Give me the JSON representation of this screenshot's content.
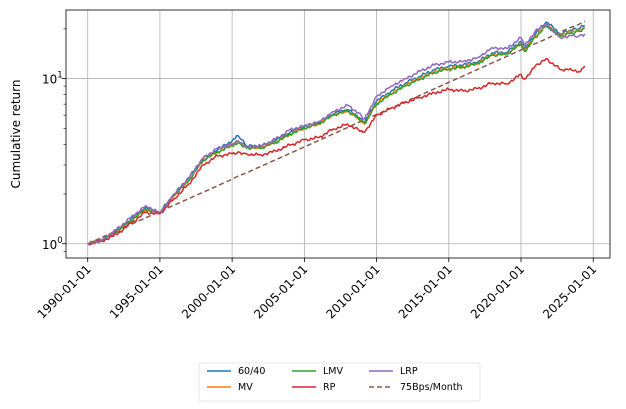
{
  "chart_data": {
    "type": "line",
    "title": "",
    "xlabel": "",
    "ylabel": "Cumulative return",
    "yscale": "log",
    "ylim": [
      0.82,
      26
    ],
    "xlim": [
      "1988-07-01",
      "2026-03-01"
    ],
    "grid": true,
    "legend_position": "bottom-center, below plot",
    "x_ticks": [
      "1990-01-01",
      "1995-01-01",
      "2000-01-01",
      "2005-01-01",
      "2010-01-01",
      "2015-01-01",
      "2020-01-01",
      "2025-01-01"
    ],
    "y_ticks": [
      {
        "value": 1,
        "label": "10",
        "exp": "0"
      },
      {
        "value": 10,
        "label": "10",
        "exp": "1"
      }
    ],
    "x": [
      "1990-01-01",
      "1991-01-01",
      "1992-01-01",
      "1993-01-01",
      "1994-01-01",
      "1995-01-01",
      "1996-01-01",
      "1997-01-01",
      "1998-01-01",
      "1999-01-01",
      "2000-01-01",
      "2000-06-01",
      "2001-01-01",
      "2002-01-01",
      "2003-01-01",
      "2004-01-01",
      "2005-01-01",
      "2006-01-01",
      "2007-01-01",
      "2008-01-01",
      "2008-10-01",
      "2009-03-01",
      "2010-01-01",
      "2011-01-01",
      "2012-01-01",
      "2013-01-01",
      "2014-01-01",
      "2015-01-01",
      "2016-01-01",
      "2017-01-01",
      "2018-01-01",
      "2019-01-01",
      "2020-01-01",
      "2020-04-01",
      "2021-01-01",
      "2021-10-01",
      "2022-10-01",
      "2023-06-01",
      "2024-01-01",
      "2024-06-01"
    ],
    "series": [
      {
        "name": "60/40",
        "color": "#1f77b4",
        "dash": false,
        "values": [
          1.0,
          1.05,
          1.2,
          1.4,
          1.65,
          1.55,
          2.0,
          2.5,
          3.3,
          3.7,
          4.2,
          4.5,
          3.9,
          3.9,
          4.2,
          4.7,
          5.1,
          5.4,
          6.1,
          6.5,
          5.8,
          5.4,
          7.3,
          8.4,
          9.4,
          10.3,
          11.3,
          11.8,
          12.1,
          12.6,
          14.3,
          14.4,
          16.8,
          15.0,
          18.6,
          22.0,
          18.6,
          19.6,
          20.0,
          21.0
        ]
      },
      {
        "name": "MV",
        "color": "#ff7f0e",
        "dash": false,
        "values": [
          1.0,
          1.05,
          1.18,
          1.38,
          1.6,
          1.53,
          1.95,
          2.4,
          3.2,
          3.6,
          4.0,
          4.2,
          3.8,
          3.8,
          4.1,
          4.6,
          5.0,
          5.3,
          6.0,
          6.3,
          5.7,
          5.3,
          7.1,
          8.1,
          9.1,
          10.0,
          11.0,
          11.5,
          11.8,
          12.3,
          13.9,
          14.0,
          16.3,
          14.7,
          18.0,
          21.0,
          18.2,
          19.1,
          19.5,
          20.4
        ]
      },
      {
        "name": "LMV",
        "color": "#2ca02c",
        "dash": false,
        "values": [
          1.0,
          1.05,
          1.18,
          1.38,
          1.62,
          1.53,
          1.97,
          2.42,
          3.22,
          3.6,
          3.9,
          4.1,
          3.8,
          3.8,
          4.1,
          4.6,
          5.0,
          5.3,
          6.0,
          6.4,
          5.75,
          5.35,
          7.0,
          8.0,
          9.0,
          9.9,
          10.9,
          11.4,
          11.7,
          12.3,
          13.8,
          14.0,
          16.2,
          14.6,
          17.8,
          20.8,
          18.0,
          18.8,
          19.3,
          20.2
        ]
      },
      {
        "name": "RP",
        "color": "#d62728",
        "dash": false,
        "values": [
          1.0,
          1.04,
          1.14,
          1.33,
          1.55,
          1.52,
          1.88,
          2.3,
          3.0,
          3.4,
          3.5,
          3.6,
          3.5,
          3.45,
          3.65,
          3.95,
          4.25,
          4.4,
          4.95,
          5.3,
          4.9,
          4.75,
          6.0,
          6.6,
          7.2,
          7.7,
          8.2,
          8.6,
          8.4,
          8.7,
          9.4,
          9.3,
          10.6,
          9.9,
          12.0,
          13.2,
          11.3,
          11.5,
          11.0,
          11.9
        ]
      },
      {
        "name": "LRP",
        "color": "#9467bd",
        "dash": false,
        "values": [
          1.0,
          1.05,
          1.22,
          1.45,
          1.7,
          1.55,
          2.0,
          2.5,
          3.3,
          3.8,
          4.0,
          4.2,
          3.9,
          3.9,
          4.3,
          4.9,
          5.2,
          5.5,
          6.3,
          6.9,
          6.2,
          5.7,
          7.8,
          9.0,
          10.0,
          11.1,
          12.1,
          12.6,
          12.7,
          13.4,
          15.4,
          15.2,
          17.7,
          15.8,
          19.5,
          21.5,
          17.6,
          18.3,
          18.1,
          18.6
        ]
      },
      {
        "name": "75Bps/Month",
        "color": "#8c564b",
        "dash": true,
        "values": [
          1.0,
          1.094,
          1.197,
          1.31,
          1.433,
          1.568,
          1.716,
          1.877,
          2.054,
          2.247,
          2.459,
          2.57,
          2.69,
          2.944,
          3.221,
          3.524,
          3.856,
          4.22,
          4.617,
          5.052,
          5.431,
          5.64,
          6.05,
          6.62,
          7.24,
          7.92,
          8.67,
          9.49,
          10.38,
          11.36,
          12.43,
          13.6,
          14.88,
          15.22,
          16.29,
          17.38,
          19.16,
          20.35,
          21.27,
          22.25
        ]
      }
    ]
  }
}
